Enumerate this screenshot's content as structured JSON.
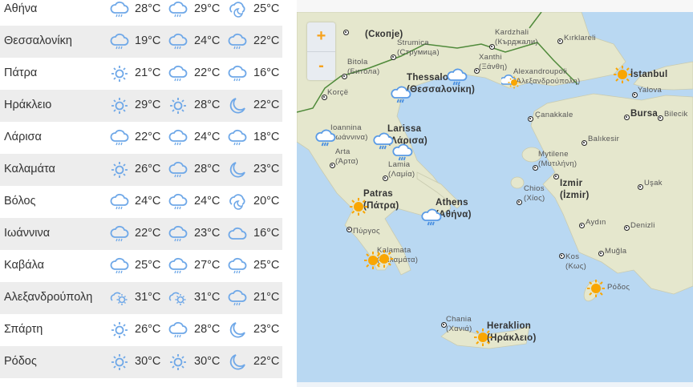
{
  "colors": {
    "list_icon": "#6fa8e8",
    "map_sun": "#f9a602",
    "sea": "#b9d8f2",
    "land": "#e5e7cd",
    "zoom_text": "#f7a21b"
  },
  "forecast": [
    {
      "city": "Αθήνα",
      "days": [
        {
          "icon": "rain",
          "temp": "28°C"
        },
        {
          "icon": "rain",
          "temp": "29°C"
        },
        {
          "icon": "moon-cloud",
          "temp": "25°C"
        }
      ]
    },
    {
      "city": "Θεσσαλονίκη",
      "days": [
        {
          "icon": "rain",
          "temp": "19°C"
        },
        {
          "icon": "rain",
          "temp": "24°C"
        },
        {
          "icon": "rain",
          "temp": "22°C"
        }
      ]
    },
    {
      "city": "Πάτρα",
      "days": [
        {
          "icon": "sun",
          "temp": "21°C"
        },
        {
          "icon": "rain",
          "temp": "22°C"
        },
        {
          "icon": "rain",
          "temp": "16°C"
        }
      ]
    },
    {
      "city": "Ηράκλειο",
      "days": [
        {
          "icon": "sun",
          "temp": "29°C"
        },
        {
          "icon": "sun",
          "temp": "28°C"
        },
        {
          "icon": "moon",
          "temp": "22°C"
        }
      ]
    },
    {
      "city": "Λάρισα",
      "days": [
        {
          "icon": "rain",
          "temp": "22°C"
        },
        {
          "icon": "rain",
          "temp": "24°C"
        },
        {
          "icon": "rain",
          "temp": "18°C"
        }
      ]
    },
    {
      "city": "Καλαμάτα",
      "days": [
        {
          "icon": "sun",
          "temp": "26°C"
        },
        {
          "icon": "rain",
          "temp": "28°C"
        },
        {
          "icon": "moon",
          "temp": "23°C"
        }
      ]
    },
    {
      "city": "Βόλος",
      "days": [
        {
          "icon": "rain",
          "temp": "24°C"
        },
        {
          "icon": "rain",
          "temp": "24°C"
        },
        {
          "icon": "moon-cloud",
          "temp": "20°C"
        }
      ]
    },
    {
      "city": "Ιωάννινα",
      "days": [
        {
          "icon": "rain",
          "temp": "22°C"
        },
        {
          "icon": "rain",
          "temp": "23°C"
        },
        {
          "icon": "cloud",
          "temp": "16°C"
        }
      ]
    },
    {
      "city": "Καβάλα",
      "days": [
        {
          "icon": "rain",
          "temp": "25°C"
        },
        {
          "icon": "rain",
          "temp": "27°C"
        },
        {
          "icon": "rain",
          "temp": "25°C"
        }
      ]
    },
    {
      "city": "Αλεξανδρούπολη",
      "days": [
        {
          "icon": "cloud-sun",
          "temp": "31°C"
        },
        {
          "icon": "cloud-sun",
          "temp": "31°C"
        },
        {
          "icon": "rain",
          "temp": "21°C"
        }
      ]
    },
    {
      "city": "Σπάρτη",
      "days": [
        {
          "icon": "sun",
          "temp": "26°C"
        },
        {
          "icon": "rain",
          "temp": "28°C"
        },
        {
          "icon": "moon",
          "temp": "23°C"
        }
      ]
    },
    {
      "city": "Ρόδος",
      "days": [
        {
          "icon": "sun",
          "temp": "30°C"
        },
        {
          "icon": "sun",
          "temp": "30°C"
        },
        {
          "icon": "moon",
          "temp": "22°C"
        }
      ]
    }
  ],
  "map": {
    "zoom_in": "+",
    "zoom_out": "-",
    "labels": [
      {
        "text": "(Скопje)",
        "big": true
      },
      {
        "text": "Strumica\n(Струмица)"
      },
      {
        "text": "Bitola\n(Битола)"
      },
      {
        "text": "Korçë"
      },
      {
        "text": "Thessaloniki\n(Θεσσαλονίκη)",
        "big": true
      },
      {
        "text": "Kardzhali\n(Кърджали)"
      },
      {
        "text": "Xanthi\n(Ξάνθη)"
      },
      {
        "text": "Alexandroupoli\n(Αλεξανδρούπολη)"
      },
      {
        "text": "Kırklareli"
      },
      {
        "text": "İstanbul",
        "big": true
      },
      {
        "text": "Yalova"
      },
      {
        "text": "Bursa",
        "big": true
      },
      {
        "text": "Bilecik"
      },
      {
        "text": "Çanakkale"
      },
      {
        "text": "Balıkesir"
      },
      {
        "text": "Ioannina\n(Ιωάννινα)"
      },
      {
        "text": "Larissa\n(Λάρισα)",
        "big": true
      },
      {
        "text": "Arta\n(Άρτα)"
      },
      {
        "text": "Lamia\n(Λαμία)"
      },
      {
        "text": "Mytilene\n(Μυτιλήνη)"
      },
      {
        "text": "Izmir\n(İzmir)",
        "big": true
      },
      {
        "text": "Chios\n(Χίος)"
      },
      {
        "text": "Uşak"
      },
      {
        "text": "Patras\n(Πάτρα)",
        "big": true
      },
      {
        "text": "Athens\n(Αθήνα)",
        "big": true
      },
      {
        "text": "Πύργος"
      },
      {
        "text": "Aydın"
      },
      {
        "text": "Denizli"
      },
      {
        "text": "Kalamata\n(Καλαμάτα)"
      },
      {
        "text": "Muğla"
      },
      {
        "text": "Kos\n(Κως)"
      },
      {
        "text": "Ρόδος"
      },
      {
        "text": "Chania\n(Χανιά)"
      },
      {
        "text": "Heraklion\n(Ηράκλειο)",
        "big": true
      }
    ],
    "markers": [
      "rain",
      "rain",
      "cloud-sun",
      "sun",
      "rain",
      "rain",
      "rain",
      "sun",
      "rain",
      "sun",
      "sun",
      "sun",
      "sun"
    ]
  }
}
